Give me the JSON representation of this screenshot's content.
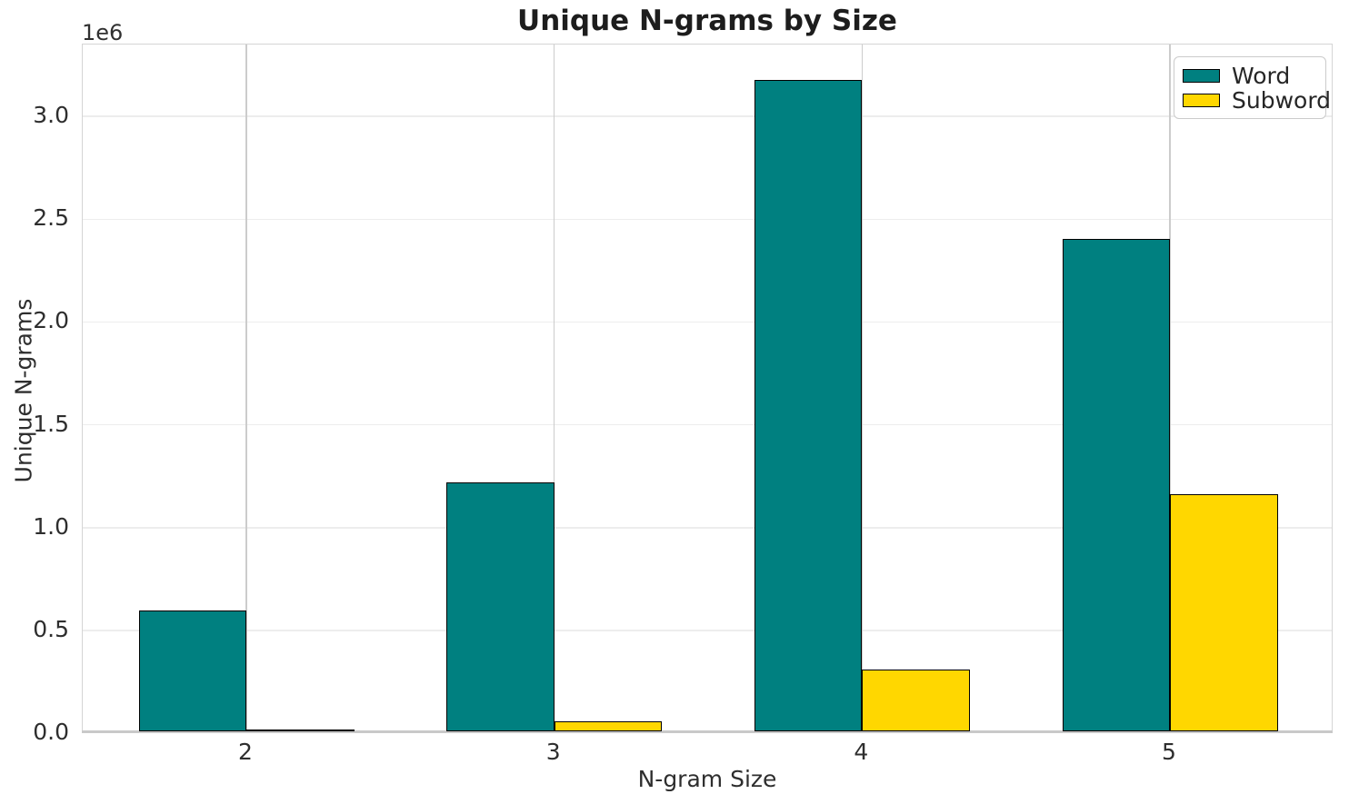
{
  "chart_data": {
    "type": "bar",
    "title": "Unique N-grams by Size",
    "xlabel": "N-gram Size",
    "ylabel": "Unique N-grams",
    "scale_label": "1e6",
    "categories": [
      "2",
      "3",
      "4",
      "5"
    ],
    "series": [
      {
        "name": "Word",
        "color": "#008080",
        "values": [
          590000,
          1210000,
          3170000,
          2395000
        ]
      },
      {
        "name": "Subword",
        "color": "#FFD700",
        "values": [
          5000,
          48000,
          300000,
          1155000
        ]
      }
    ],
    "ylim": [
      0,
      3350000
    ],
    "yticks": [
      0,
      500000,
      1000000,
      1500000,
      2000000,
      2500000,
      3000000
    ],
    "ytick_labels": [
      "0.0",
      "0.5",
      "1.0",
      "1.5",
      "2.0",
      "2.5",
      "3.0"
    ],
    "grid": true,
    "legend_position": "upper right",
    "bar_edge_color": "#000000",
    "text_color": "#262626"
  }
}
